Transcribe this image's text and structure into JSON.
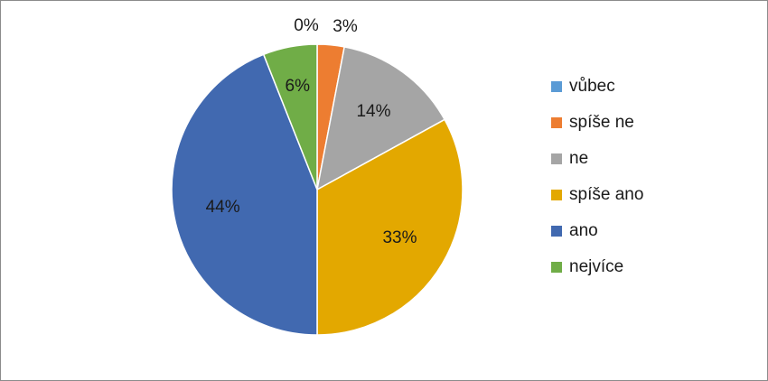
{
  "chart_data": {
    "type": "pie",
    "categories": [
      "vůbec",
      "spíše ne",
      "ne",
      "spíše ano",
      "ano",
      "nejvíce"
    ],
    "values": [
      0,
      3,
      14,
      33,
      44,
      6
    ],
    "data_labels": [
      "0%",
      "3%",
      "14%",
      "33%",
      "44%",
      "6%"
    ],
    "colors": [
      "#5B9BD5",
      "#ED7D31",
      "#A5A5A5",
      "#E3A800",
      "#4169B0",
      "#70AD47"
    ],
    "title": "",
    "legend_position": "right",
    "start_angle": "top, clockwise"
  }
}
